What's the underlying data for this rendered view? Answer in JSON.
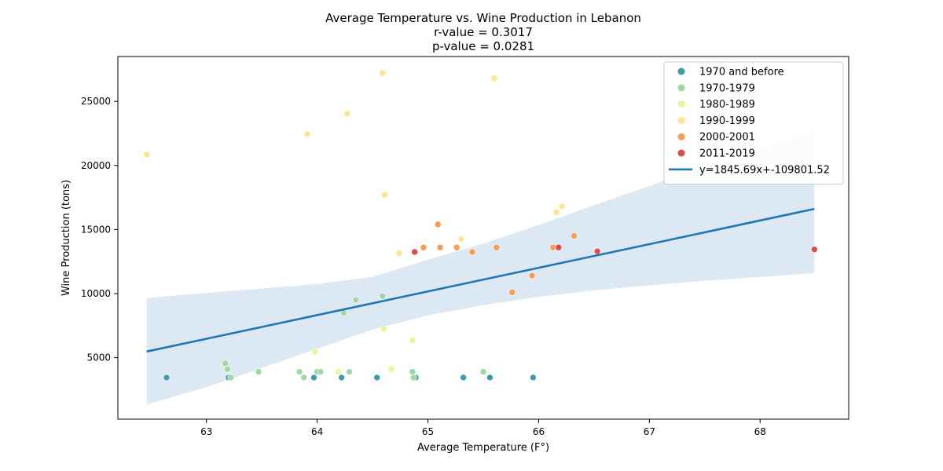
{
  "chart_data": {
    "type": "scatter",
    "title_lines": [
      "Average Temperature vs. Wine Production in Lebanon",
      "r-value = 0.3017",
      "p-value = 0.0281"
    ],
    "xlabel": "Average Temperature (F°)",
    "ylabel": "Wine Production (tons)",
    "xlim": [
      62.2,
      68.8
    ],
    "ylim": [
      200,
      28500
    ],
    "xticks": [
      63,
      64,
      65,
      66,
      67,
      68
    ],
    "yticks": [
      5000,
      10000,
      15000,
      20000,
      25000
    ],
    "grid": false,
    "legend_position": "top-right",
    "series": [
      {
        "name": "1970 and before",
        "color": "#3a9cae",
        "points": [
          [
            62.64,
            3450
          ],
          [
            63.2,
            3450
          ],
          [
            63.97,
            3450
          ],
          [
            64.22,
            3450
          ],
          [
            64.54,
            3450
          ],
          [
            64.89,
            3450
          ],
          [
            65.32,
            3450
          ],
          [
            65.56,
            3450
          ],
          [
            65.95,
            3450
          ]
        ]
      },
      {
        "name": "1970-1979",
        "color": "#9fd8a4",
        "points": [
          [
            63.17,
            4550
          ],
          [
            63.19,
            4100
          ],
          [
            63.22,
            3450
          ],
          [
            63.47,
            3900
          ],
          [
            63.84,
            3900
          ],
          [
            63.88,
            3450
          ],
          [
            64.0,
            3900
          ],
          [
            64.03,
            3900
          ],
          [
            64.24,
            8500
          ],
          [
            64.29,
            3900
          ],
          [
            64.35,
            9500
          ],
          [
            64.59,
            9800
          ],
          [
            64.86,
            3900
          ],
          [
            64.87,
            3450
          ],
          [
            65.5,
            3900
          ]
        ]
      },
      {
        "name": "1980-1989",
        "color": "#eaf59a",
        "points": [
          [
            63.98,
            5450
          ],
          [
            64.19,
            3900
          ],
          [
            64.6,
            7250
          ],
          [
            64.67,
            4100
          ],
          [
            64.86,
            6350
          ]
        ]
      },
      {
        "name": "1990-1999",
        "color": "#fde48e",
        "points": [
          [
            62.46,
            20850
          ],
          [
            63.91,
            22450
          ],
          [
            64.27,
            24050
          ],
          [
            64.59,
            27200
          ],
          [
            64.61,
            17700
          ],
          [
            64.74,
            13150
          ],
          [
            65.3,
            14250
          ],
          [
            65.6,
            26800
          ],
          [
            66.16,
            16350
          ],
          [
            66.21,
            16800
          ]
        ]
      },
      {
        "name": "2000-2001",
        "color": "#f99d55",
        "points": [
          [
            64.96,
            13600
          ],
          [
            65.09,
            15400
          ],
          [
            65.11,
            13600
          ],
          [
            65.26,
            13600
          ],
          [
            65.4,
            13250
          ],
          [
            65.62,
            13600
          ],
          [
            65.76,
            10100
          ],
          [
            65.94,
            11400
          ],
          [
            66.13,
            13600
          ],
          [
            66.32,
            14500
          ]
        ]
      },
      {
        "name": "2011-2019",
        "color": "#dd4d45",
        "points": [
          [
            64.88,
            13250
          ],
          [
            66.18,
            13600
          ],
          [
            66.53,
            13300
          ],
          [
            68.49,
            13450
          ]
        ]
      }
    ],
    "regression": {
      "label": "y=1845.69x+-109801.52",
      "slope": 1845.69,
      "intercept": -109801.52,
      "x_range": [
        62.46,
        68.49
      ],
      "color": "#1f77b4",
      "band_color": "#dce9f4",
      "band_upper": [
        [
          62.46,
          9650
        ],
        [
          63.0,
          10050
        ],
        [
          63.5,
          10400
        ],
        [
          64.0,
          10750
        ],
        [
          64.5,
          11300
        ],
        [
          65.0,
          12650
        ],
        [
          65.5,
          13900
        ],
        [
          66.0,
          15350
        ],
        [
          66.5,
          16900
        ],
        [
          67.0,
          18400
        ],
        [
          67.5,
          19900
        ],
        [
          68.0,
          21300
        ],
        [
          68.49,
          22650
        ]
      ],
      "band_lower": [
        [
          62.46,
          1350
        ],
        [
          63.0,
          2700
        ],
        [
          63.5,
          4200
        ],
        [
          64.0,
          5700
        ],
        [
          64.5,
          7200
        ],
        [
          65.0,
          8300
        ],
        [
          65.5,
          9100
        ],
        [
          66.0,
          9750
        ],
        [
          66.5,
          10250
        ],
        [
          67.0,
          10650
        ],
        [
          67.5,
          11000
        ],
        [
          68.0,
          11300
        ],
        [
          68.49,
          11600
        ]
      ]
    }
  }
}
